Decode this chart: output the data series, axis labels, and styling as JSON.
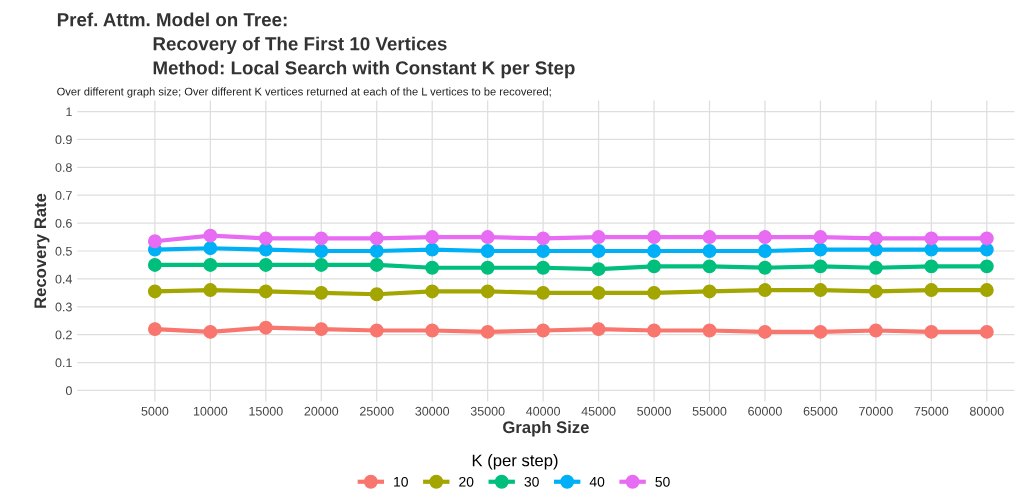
{
  "chart_data": {
    "type": "line",
    "title": "Pref. Attm. Model on Tree:\nRecovery of The First 10 Vertices\nMethod: Local Search with Constant K per Step",
    "subtitle": "Over different graph size; Over different K vertices returned at each of the L vertices to be recovered;",
    "xlabel": "Graph Size",
    "ylabel": "Recovery Rate",
    "legend_title": "K (per step)",
    "categories": [
      "5000",
      "10000",
      "15000",
      "20000",
      "25000",
      "30000",
      "35000",
      "40000",
      "45000",
      "50000",
      "55000",
      "60000",
      "65000",
      "70000",
      "75000",
      "80000"
    ],
    "series": [
      {
        "name": "10",
        "color": "#f8766d",
        "values": [
          0.22,
          0.21,
          0.225,
          0.22,
          0.215,
          0.215,
          0.21,
          0.215,
          0.22,
          0.215,
          0.215,
          0.21,
          0.21,
          0.215,
          0.21,
          0.21
        ]
      },
      {
        "name": "20",
        "color": "#a3a500",
        "values": [
          0.355,
          0.36,
          0.355,
          0.35,
          0.345,
          0.355,
          0.355,
          0.35,
          0.35,
          0.35,
          0.355,
          0.36,
          0.36,
          0.355,
          0.36,
          0.36
        ]
      },
      {
        "name": "30",
        "color": "#00bf7d",
        "values": [
          0.45,
          0.45,
          0.45,
          0.45,
          0.45,
          0.44,
          0.44,
          0.44,
          0.435,
          0.445,
          0.445,
          0.44,
          0.445,
          0.44,
          0.445,
          0.445
        ]
      },
      {
        "name": "40",
        "color": "#00b0f6",
        "values": [
          0.505,
          0.51,
          0.505,
          0.5,
          0.5,
          0.505,
          0.5,
          0.5,
          0.5,
          0.5,
          0.5,
          0.5,
          0.505,
          0.505,
          0.505,
          0.505
        ]
      },
      {
        "name": "50",
        "color": "#e76bf3",
        "values": [
          0.535,
          0.555,
          0.545,
          0.545,
          0.545,
          0.55,
          0.55,
          0.545,
          0.55,
          0.55,
          0.55,
          0.55,
          0.55,
          0.545,
          0.545,
          0.545
        ]
      }
    ],
    "ylim": [
      -0.04,
      1.04
    ],
    "yticks": [
      0,
      0.1,
      0.2,
      0.3,
      0.4,
      0.5,
      0.6,
      0.7,
      0.8,
      0.9,
      1
    ],
    "grid": true,
    "legend": "bottom",
    "marker": "circle",
    "line_style": "solid"
  }
}
